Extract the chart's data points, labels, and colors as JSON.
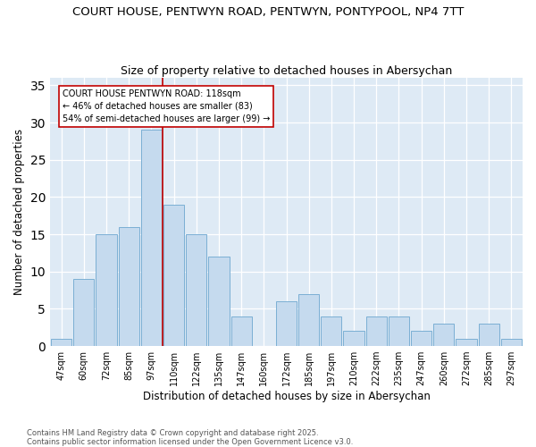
{
  "title1": "COURT HOUSE, PENTWYN ROAD, PENTWYN, PONTYPOOL, NP4 7TT",
  "title2": "Size of property relative to detached houses in Abersychan",
  "xlabel": "Distribution of detached houses by size in Abersychan",
  "ylabel": "Number of detached properties",
  "categories": [
    "47sqm",
    "60sqm",
    "72sqm",
    "85sqm",
    "97sqm",
    "110sqm",
    "122sqm",
    "135sqm",
    "147sqm",
    "160sqm",
    "172sqm",
    "185sqm",
    "197sqm",
    "210sqm",
    "222sqm",
    "235sqm",
    "247sqm",
    "260sqm",
    "272sqm",
    "285sqm",
    "297sqm"
  ],
  "values": [
    1,
    9,
    15,
    16,
    29,
    19,
    15,
    12,
    4,
    0,
    6,
    7,
    4,
    2,
    4,
    4,
    2,
    3,
    1,
    3,
    1
  ],
  "bar_color": "#c5daee",
  "bar_edge_color": "#7bafd4",
  "bar_edge_width": 0.7,
  "vline_color": "#c00000",
  "vline_x_idx": 4.5,
  "annotation_text": "COURT HOUSE PENTWYN ROAD: 118sqm\n← 46% of detached houses are smaller (83)\n54% of semi-detached houses are larger (99) →",
  "ylim": [
    0,
    36
  ],
  "yticks": [
    0,
    5,
    10,
    15,
    20,
    25,
    30,
    35
  ],
  "footnote1": "Contains HM Land Registry data © Crown copyright and database right 2025.",
  "footnote2": "Contains public sector information licensed under the Open Government Licence v3.0.",
  "bg_color": "#deeaf5",
  "grid_color": "#c8d8e8",
  "title_fontsize": 9.5,
  "axis_fontsize": 8.5,
  "tick_fontsize": 7
}
